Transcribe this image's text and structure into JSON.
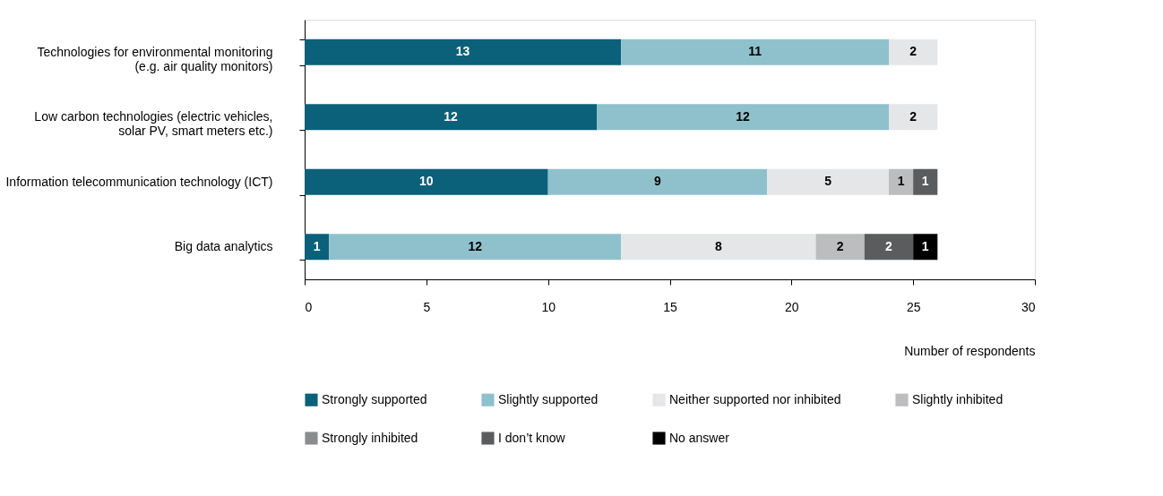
{
  "chart_data": {
    "type": "bar",
    "orientation": "horizontal",
    "stacked": true,
    "data_labels": true,
    "categories": [
      "Technologies for environmental monitoring (e.g. air quality monitors)",
      "Low carbon technologies (electric vehicles, solar PV, smart meters etc.)",
      "Information telecommunication technology (ICT)",
      "Big data analytics"
    ],
    "series": [
      {
        "name": "Strongly supported",
        "color": "#0b6179",
        "values": [
          13,
          12,
          10,
          1
        ]
      },
      {
        "name": "Slightly supported",
        "color": "#8fc1cc",
        "values": [
          11,
          12,
          9,
          12
        ]
      },
      {
        "name": "Neither supported nor inhibited",
        "color": "#e5e6e7",
        "values": [
          2,
          2,
          5,
          8
        ]
      },
      {
        "name": "Slightly inhibited",
        "color": "#bcbdbf",
        "values": [
          null,
          null,
          1,
          2
        ]
      },
      {
        "name": "Strongly inhibited",
        "color": "#8b8c8e",
        "values": [
          null,
          null,
          null,
          null
        ]
      },
      {
        "name": "I don’t know",
        "color": "#5b5c5e",
        "values": [
          null,
          null,
          1,
          2
        ]
      },
      {
        "name": "No answer",
        "color": "#000000",
        "values": [
          null,
          null,
          null,
          1
        ]
      }
    ],
    "xlim": [
      0,
      30
    ],
    "xticks": [
      0,
      5,
      10,
      15,
      20,
      25,
      30
    ],
    "xlabel": "Number of respondents",
    "grid": false,
    "legend": "bottom"
  }
}
